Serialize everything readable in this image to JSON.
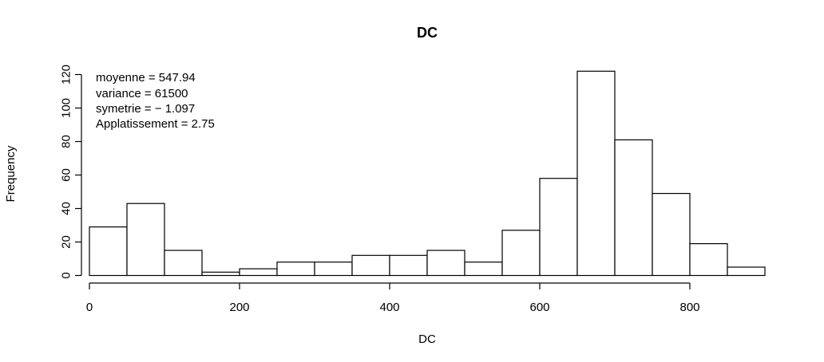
{
  "chart_data": {
    "type": "bar",
    "title": "DC",
    "xlabel": "DC",
    "ylabel": "Frequency",
    "bin_edges": [
      0,
      50,
      100,
      150,
      200,
      250,
      300,
      350,
      400,
      450,
      500,
      550,
      600,
      650,
      700,
      750,
      800,
      850,
      900
    ],
    "values": [
      29,
      43,
      15,
      2,
      4,
      8,
      8,
      12,
      12,
      15,
      8,
      27,
      58,
      122,
      81,
      49,
      19,
      5
    ],
    "xlim": [
      0,
      900
    ],
    "ylim": [
      0,
      122
    ],
    "x_ticks": [
      0,
      200,
      400,
      600,
      800
    ],
    "y_ticks": [
      0,
      20,
      40,
      60,
      80,
      100,
      120
    ],
    "grid": false,
    "annotations": [
      "moyenne = 547.94",
      "variance = 61500",
      "symetrie = − 1.097",
      "Applatissement = 2.75"
    ],
    "colors": {
      "bar_fill": "#ffffff",
      "bar_stroke": "#000000"
    }
  }
}
